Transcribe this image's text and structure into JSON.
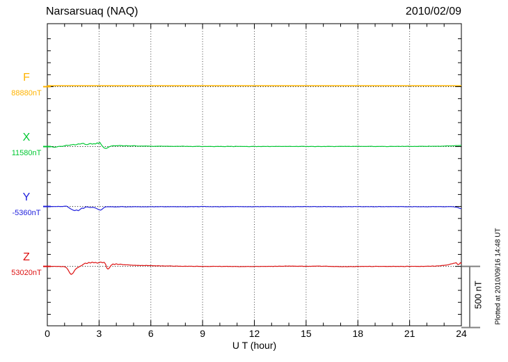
{
  "header": {
    "title": "Narsarsuaq (NAQ)",
    "date": "2010/02/09"
  },
  "chart_data": {
    "type": "line",
    "title": "Narsarsuaq (NAQ)",
    "date": "2010/02/09",
    "xlabel": "U T (hour)",
    "plotted_at": "Plotted at 2010/09/16 14:48 UT",
    "x_range": [
      0,
      24
    ],
    "x_major_ticks": [
      0,
      3,
      6,
      9,
      12,
      15,
      18,
      21,
      24
    ],
    "x_minor_step_hours": 1,
    "y_minor_step_nT": 100,
    "trace_spacing_nT": 500,
    "scale_bar": {
      "label": "500 nT",
      "span_nT": 500
    },
    "grid": {
      "vertical_dotted_at_hours": [
        3,
        6,
        9,
        12,
        15,
        18,
        21
      ],
      "horizontal_dotted_baselines": true,
      "legend_position": "left-of-axis"
    },
    "units_note": "points are [UT hour, deviation in nT from baseline]",
    "series": [
      {
        "id": "F",
        "label": "F",
        "baseline_label": "88880nT",
        "baseline_nT": 88880,
        "color": "#FFB300",
        "noise_nT": 0,
        "points": [
          [
            0,
            8
          ],
          [
            24,
            8
          ]
        ]
      },
      {
        "id": "X",
        "label": "X",
        "baseline_label": "11580nT",
        "baseline_nT": 11580,
        "color": "#00C832",
        "noise_nT": 2.4,
        "points": [
          [
            0,
            1
          ],
          [
            0.2,
            0
          ],
          [
            0.35,
            -3
          ],
          [
            0.45,
            -6
          ],
          [
            0.55,
            -2
          ],
          [
            0.7,
            1
          ],
          [
            0.85,
            2
          ],
          [
            1.0,
            6
          ],
          [
            1.1,
            11
          ],
          [
            1.2,
            8
          ],
          [
            1.35,
            14
          ],
          [
            1.5,
            19
          ],
          [
            1.6,
            14
          ],
          [
            1.7,
            17
          ],
          [
            1.8,
            23
          ],
          [
            1.9,
            20
          ],
          [
            2.0,
            25
          ],
          [
            2.1,
            27
          ],
          [
            2.2,
            20
          ],
          [
            2.3,
            17
          ],
          [
            2.4,
            23
          ],
          [
            2.5,
            25
          ],
          [
            2.6,
            21
          ],
          [
            2.7,
            25
          ],
          [
            2.8,
            22
          ],
          [
            2.9,
            31
          ],
          [
            2.95,
            24
          ],
          [
            3.05,
            35
          ],
          [
            3.1,
            22
          ],
          [
            3.2,
            2
          ],
          [
            3.3,
            -13
          ],
          [
            3.4,
            -16
          ],
          [
            3.5,
            -9
          ],
          [
            3.6,
            -2
          ],
          [
            3.7,
            4
          ],
          [
            3.85,
            8
          ],
          [
            4.0,
            6
          ],
          [
            4.2,
            9
          ],
          [
            4.4,
            6
          ],
          [
            4.6,
            7
          ],
          [
            4.8,
            5
          ],
          [
            5.0,
            7
          ],
          [
            5.3,
            4
          ],
          [
            5.6,
            5
          ],
          [
            6.0,
            3
          ],
          [
            6.5,
            3
          ],
          [
            7,
            2
          ],
          [
            8,
            2
          ],
          [
            9,
            1
          ],
          [
            10,
            1
          ],
          [
            11,
            1
          ],
          [
            12,
            1
          ],
          [
            13,
            1
          ],
          [
            14,
            1
          ],
          [
            15,
            1
          ],
          [
            16,
            1
          ],
          [
            17,
            1
          ],
          [
            18,
            2
          ],
          [
            19,
            1
          ],
          [
            20,
            1
          ],
          [
            21,
            2
          ],
          [
            22,
            2
          ],
          [
            22.6,
            3
          ],
          [
            23.0,
            4
          ],
          [
            23.4,
            5
          ],
          [
            23.7,
            7
          ],
          [
            24,
            9
          ]
        ]
      },
      {
        "id": "Y",
        "label": "Y",
        "baseline_label": "-5360nT",
        "baseline_nT": -5360,
        "color": "#2020DD",
        "noise_nT": 2.0,
        "points": [
          [
            0,
            -1
          ],
          [
            0.4,
            -1
          ],
          [
            0.8,
            0
          ],
          [
            1.0,
            1
          ],
          [
            1.1,
            3
          ],
          [
            1.18,
            -3
          ],
          [
            1.25,
            -10
          ],
          [
            1.35,
            -20
          ],
          [
            1.5,
            -30
          ],
          [
            1.6,
            -34
          ],
          [
            1.7,
            -29
          ],
          [
            1.8,
            -35
          ],
          [
            1.9,
            -26
          ],
          [
            2.0,
            -14
          ],
          [
            2.1,
            -16
          ],
          [
            2.2,
            -7
          ],
          [
            2.3,
            -3
          ],
          [
            2.4,
            -6
          ],
          [
            2.5,
            -9
          ],
          [
            2.6,
            -6
          ],
          [
            2.7,
            -9
          ],
          [
            2.8,
            -14
          ],
          [
            2.9,
            -21
          ],
          [
            3.0,
            -27
          ],
          [
            3.1,
            -30
          ],
          [
            3.2,
            -20
          ],
          [
            3.3,
            -7
          ],
          [
            3.4,
            -3
          ],
          [
            3.6,
            -2
          ],
          [
            3.9,
            -4
          ],
          [
            4.2,
            -2
          ],
          [
            4.6,
            -3
          ],
          [
            5.0,
            -2
          ],
          [
            5.5,
            -3
          ],
          [
            6,
            -2
          ],
          [
            7,
            -2
          ],
          [
            8,
            -2
          ],
          [
            9,
            -1
          ],
          [
            10,
            -2
          ],
          [
            11,
            -1
          ],
          [
            12,
            -2
          ],
          [
            13,
            -1
          ],
          [
            14,
            -2
          ],
          [
            15,
            -1
          ],
          [
            16,
            -1
          ],
          [
            17,
            -2
          ],
          [
            18,
            -1
          ],
          [
            19,
            -2
          ],
          [
            20,
            -1
          ],
          [
            21,
            -2
          ],
          [
            22,
            -2
          ],
          [
            22.5,
            -1
          ],
          [
            23.0,
            -2
          ],
          [
            23.3,
            -1
          ],
          [
            23.6,
            -3
          ],
          [
            23.75,
            -7
          ],
          [
            23.9,
            -15
          ],
          [
            24,
            -18
          ]
        ]
      },
      {
        "id": "Z",
        "label": "Z",
        "baseline_label": "53020nT",
        "baseline_nT": 53020,
        "color": "#DD1111",
        "noise_nT": 2.2,
        "points": [
          [
            0,
            0
          ],
          [
            0.4,
            0
          ],
          [
            0.8,
            -1
          ],
          [
            1.0,
            -2
          ],
          [
            1.1,
            -8
          ],
          [
            1.2,
            -28
          ],
          [
            1.3,
            -55
          ],
          [
            1.38,
            -68
          ],
          [
            1.48,
            -58
          ],
          [
            1.58,
            -34
          ],
          [
            1.7,
            -15
          ],
          [
            1.85,
            -4
          ],
          [
            2.0,
            9
          ],
          [
            2.1,
            19
          ],
          [
            2.2,
            28
          ],
          [
            2.3,
            23
          ],
          [
            2.4,
            33
          ],
          [
            2.5,
            28
          ],
          [
            2.6,
            37
          ],
          [
            2.7,
            29
          ],
          [
            2.8,
            33
          ],
          [
            2.9,
            27
          ],
          [
            3.0,
            31
          ],
          [
            3.1,
            37
          ],
          [
            3.2,
            29
          ],
          [
            3.3,
            33
          ],
          [
            3.38,
            18
          ],
          [
            3.45,
            -14
          ],
          [
            3.52,
            -22
          ],
          [
            3.6,
            -12
          ],
          [
            3.7,
            9
          ],
          [
            3.8,
            20
          ],
          [
            3.9,
            15
          ],
          [
            4.0,
            22
          ],
          [
            4.1,
            16
          ],
          [
            4.25,
            19
          ],
          [
            4.4,
            13
          ],
          [
            4.6,
            14
          ],
          [
            4.8,
            11
          ],
          [
            5.0,
            10
          ],
          [
            5.4,
            8
          ],
          [
            5.8,
            7
          ],
          [
            6.2,
            5
          ],
          [
            6.6,
            4
          ],
          [
            7.0,
            3
          ],
          [
            7.5,
            2
          ],
          [
            8,
            1
          ],
          [
            9,
            0
          ],
          [
            10,
            0
          ],
          [
            11,
            -1
          ],
          [
            12,
            -1
          ],
          [
            13,
            0
          ],
          [
            14,
            2
          ],
          [
            15,
            1
          ],
          [
            16,
            2
          ],
          [
            17,
            -2
          ],
          [
            18,
            -1
          ],
          [
            19,
            0
          ],
          [
            20,
            0
          ],
          [
            21,
            0
          ],
          [
            22,
            1
          ],
          [
            22.5,
            3
          ],
          [
            23.0,
            8
          ],
          [
            23.3,
            17
          ],
          [
            23.55,
            26
          ],
          [
            23.7,
            30
          ],
          [
            23.8,
            13
          ],
          [
            23.9,
            22
          ],
          [
            23.95,
            33
          ],
          [
            24,
            22
          ]
        ]
      }
    ]
  }
}
